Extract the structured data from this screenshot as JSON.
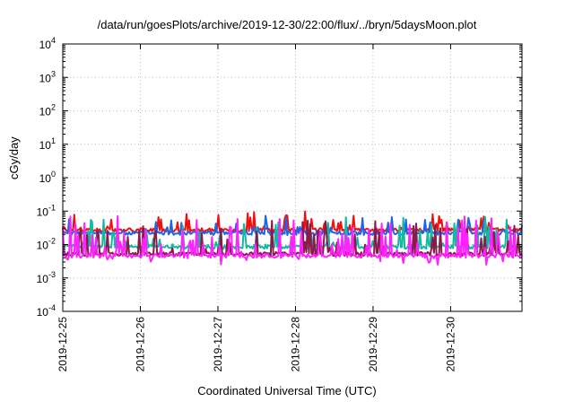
{
  "chart_data": {
    "type": "line",
    "title": "/data/run/goesPlots/archive/2019-12-30/22:00/flux/../bryn/5daysMoon.plot",
    "xlabel": "Coordinated Universal Time (UTC)",
    "ylabel": "cGy/day",
    "yscale": "log",
    "ylim": [
      0.0001,
      10000
    ],
    "xlim": [
      0,
      5.92
    ],
    "y_ticks": [
      {
        "base": "10",
        "exp": "4",
        "value": 10000
      },
      {
        "base": "10",
        "exp": "3",
        "value": 1000
      },
      {
        "base": "10",
        "exp": "2",
        "value": 100
      },
      {
        "base": "10",
        "exp": "1",
        "value": 10
      },
      {
        "base": "10",
        "exp": "0",
        "value": 1
      },
      {
        "base": "10",
        "exp": "-1",
        "value": 0.1
      },
      {
        "base": "10",
        "exp": "-2",
        "value": 0.01
      },
      {
        "base": "10",
        "exp": "-3",
        "value": 0.001
      },
      {
        "base": "10",
        "exp": "-4",
        "value": 0.0001
      }
    ],
    "x_ticks": [
      {
        "label": "2019-12-25",
        "value": 0
      },
      {
        "label": "2019-12-26",
        "value": 1
      },
      {
        "label": "2019-12-27",
        "value": 2
      },
      {
        "label": "2019-12-28",
        "value": 3
      },
      {
        "label": "2019-12-29",
        "value": 4
      },
      {
        "label": "2019-12-30",
        "value": 5
      }
    ],
    "grid": true,
    "legend": "none",
    "series": [
      {
        "color": "#ee1111",
        "base": 0.027,
        "spike_amp": 0.9,
        "spike_rate": 0.12,
        "seed": 11
      },
      {
        "color": "#1e63e8",
        "base": 0.022,
        "spike_amp": 0.8,
        "spike_rate": 0.1,
        "seed": 23
      },
      {
        "color": "#14b8a0",
        "base": 0.0085,
        "spike_amp": 0.9,
        "spike_rate": 0.16,
        "seed": 37
      },
      {
        "color": "#8a1a4a",
        "base": 0.0052,
        "spike_amp": 1.0,
        "spike_rate": 0.16,
        "seed": 41
      },
      {
        "color": "#ff22ff",
        "base": 0.0046,
        "spike_amp": 1.25,
        "spike_rate": 0.2,
        "seed": 53
      }
    ]
  }
}
